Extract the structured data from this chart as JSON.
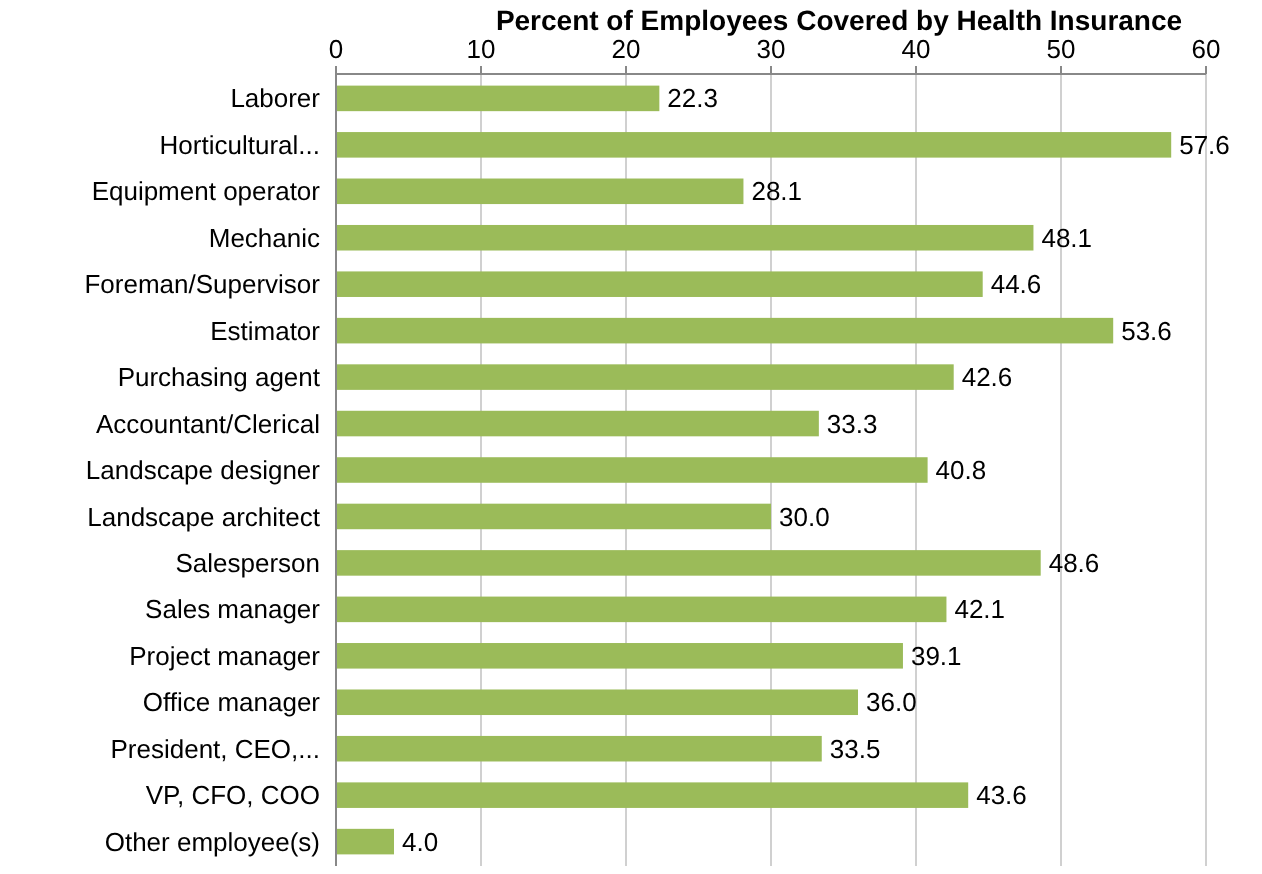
{
  "chart_data": {
    "type": "bar",
    "orientation": "horizontal",
    "title": "Percent of Employees Covered by Health Insurance",
    "categories": [
      "Laborer",
      "Horticultural...",
      "Equipment operator",
      "Mechanic",
      "Foreman/Supervisor",
      "Estimator",
      "Purchasing agent",
      "Accountant/Clerical",
      "Landscape designer",
      "Landscape architect",
      "Salesperson",
      "Sales manager",
      "Project manager",
      "Office manager",
      "President, CEO,...",
      "VP, CFO, COO",
      "Other employee(s)"
    ],
    "values": [
      22.3,
      57.6,
      28.1,
      48.1,
      44.6,
      53.6,
      42.6,
      33.3,
      40.8,
      30.0,
      48.6,
      42.1,
      39.1,
      36.0,
      33.5,
      43.6,
      4.0
    ],
    "value_labels": [
      "22.3",
      "57.6",
      "28.1",
      "48.1",
      "44.6",
      "53.6",
      "42.6",
      "33.3",
      "40.8",
      "30.0",
      "48.6",
      "42.1",
      "39.1",
      "36.0",
      "33.5",
      "43.6",
      "4.0"
    ],
    "color": "#9bbb59",
    "xlim": [
      0,
      60
    ],
    "xticks": [
      0,
      10,
      20,
      30,
      40,
      50,
      60
    ],
    "grid": "x"
  }
}
